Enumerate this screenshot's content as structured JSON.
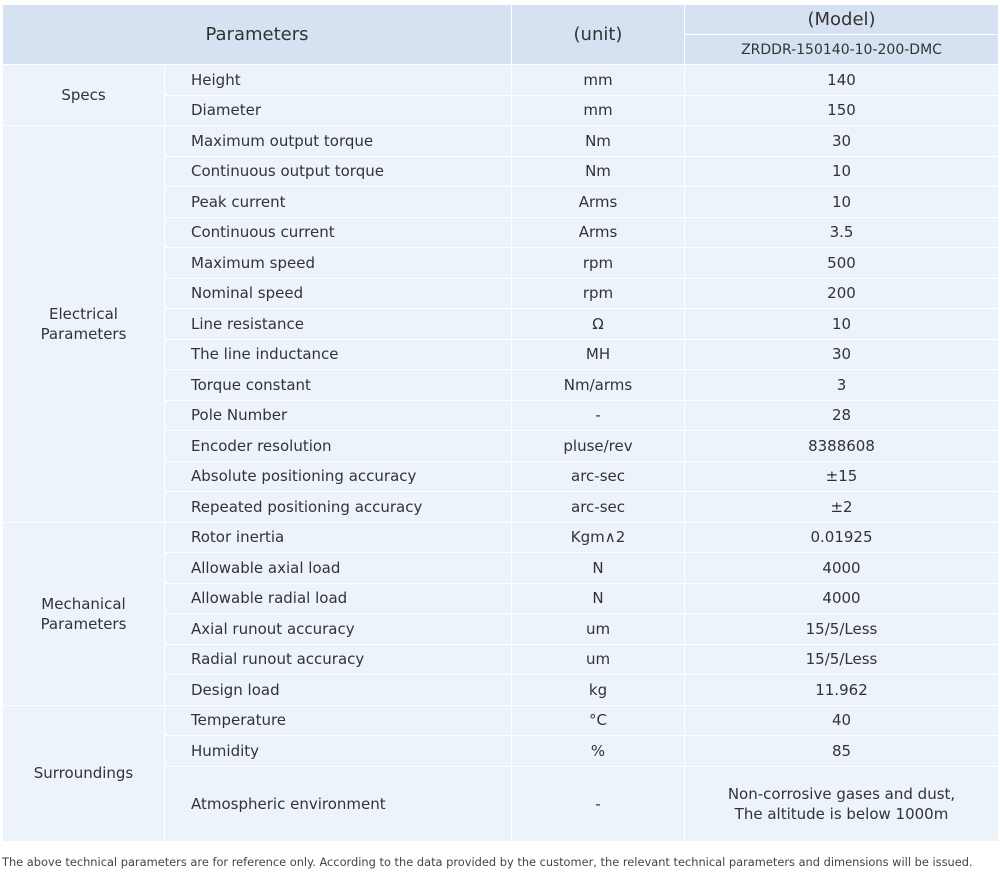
{
  "header": {
    "parameters": "Parameters",
    "unit": "(unit)",
    "model": "(Model)",
    "model_name": "ZRDDR-150140-10-200-DMC"
  },
  "groups": [
    {
      "name": "Specs",
      "rows": [
        [
          "Height",
          "mm",
          "140"
        ],
        [
          "Diameter",
          "mm",
          "150"
        ]
      ]
    },
    {
      "name": "Electrical Parameters",
      "rows": [
        [
          "Maximum output torque",
          "Nm",
          "30"
        ],
        [
          "Continuous output torque",
          "Nm",
          "10"
        ],
        [
          "Peak current",
          "Arms",
          "10"
        ],
        [
          "Continuous current",
          "Arms",
          "3.5"
        ],
        [
          "Maximum speed",
          "rpm",
          "500"
        ],
        [
          "Nominal speed",
          "rpm",
          "200"
        ],
        [
          "Line resistance",
          "Ω",
          "10"
        ],
        [
          "The line inductance",
          "MH",
          "30"
        ],
        [
          "Torque constant",
          "Nm/arms",
          "3"
        ],
        [
          "Pole Number",
          "-",
          "28"
        ],
        [
          "Encoder resolution",
          "pluse/rev",
          "8388608"
        ],
        [
          "Absolute positioning accuracy",
          "arc-sec",
          "±15"
        ],
        [
          "Repeated positioning accuracy",
          "arc-sec",
          "±2"
        ]
      ]
    },
    {
      "name": "Mechanical Parameters",
      "rows": [
        [
          "Rotor inertia",
          "Kgm∧2",
          "0.01925"
        ],
        [
          "Allowable axial load",
          "N",
          "4000"
        ],
        [
          "Allowable radial load",
          "N",
          "4000"
        ],
        [
          "Axial runout accuracy",
          "um",
          "15/5/Less"
        ],
        [
          "Radial runout accuracy",
          "um",
          "15/5/Less"
        ],
        [
          "Design load",
          "kg",
          "11.962"
        ]
      ]
    },
    {
      "name": "Surroundings",
      "rows": [
        [
          "Temperature",
          "°C",
          "40"
        ],
        [
          "Humidity",
          "%",
          "85"
        ],
        [
          "Atmospheric environment",
          "-",
          "Non-corrosive gases and dust,\nThe altitude is below 1000m"
        ]
      ]
    }
  ],
  "footer": "The above technical parameters are for reference only. According to the data provided by the customer, the relevant technical parameters and dimensions will be issued."
}
